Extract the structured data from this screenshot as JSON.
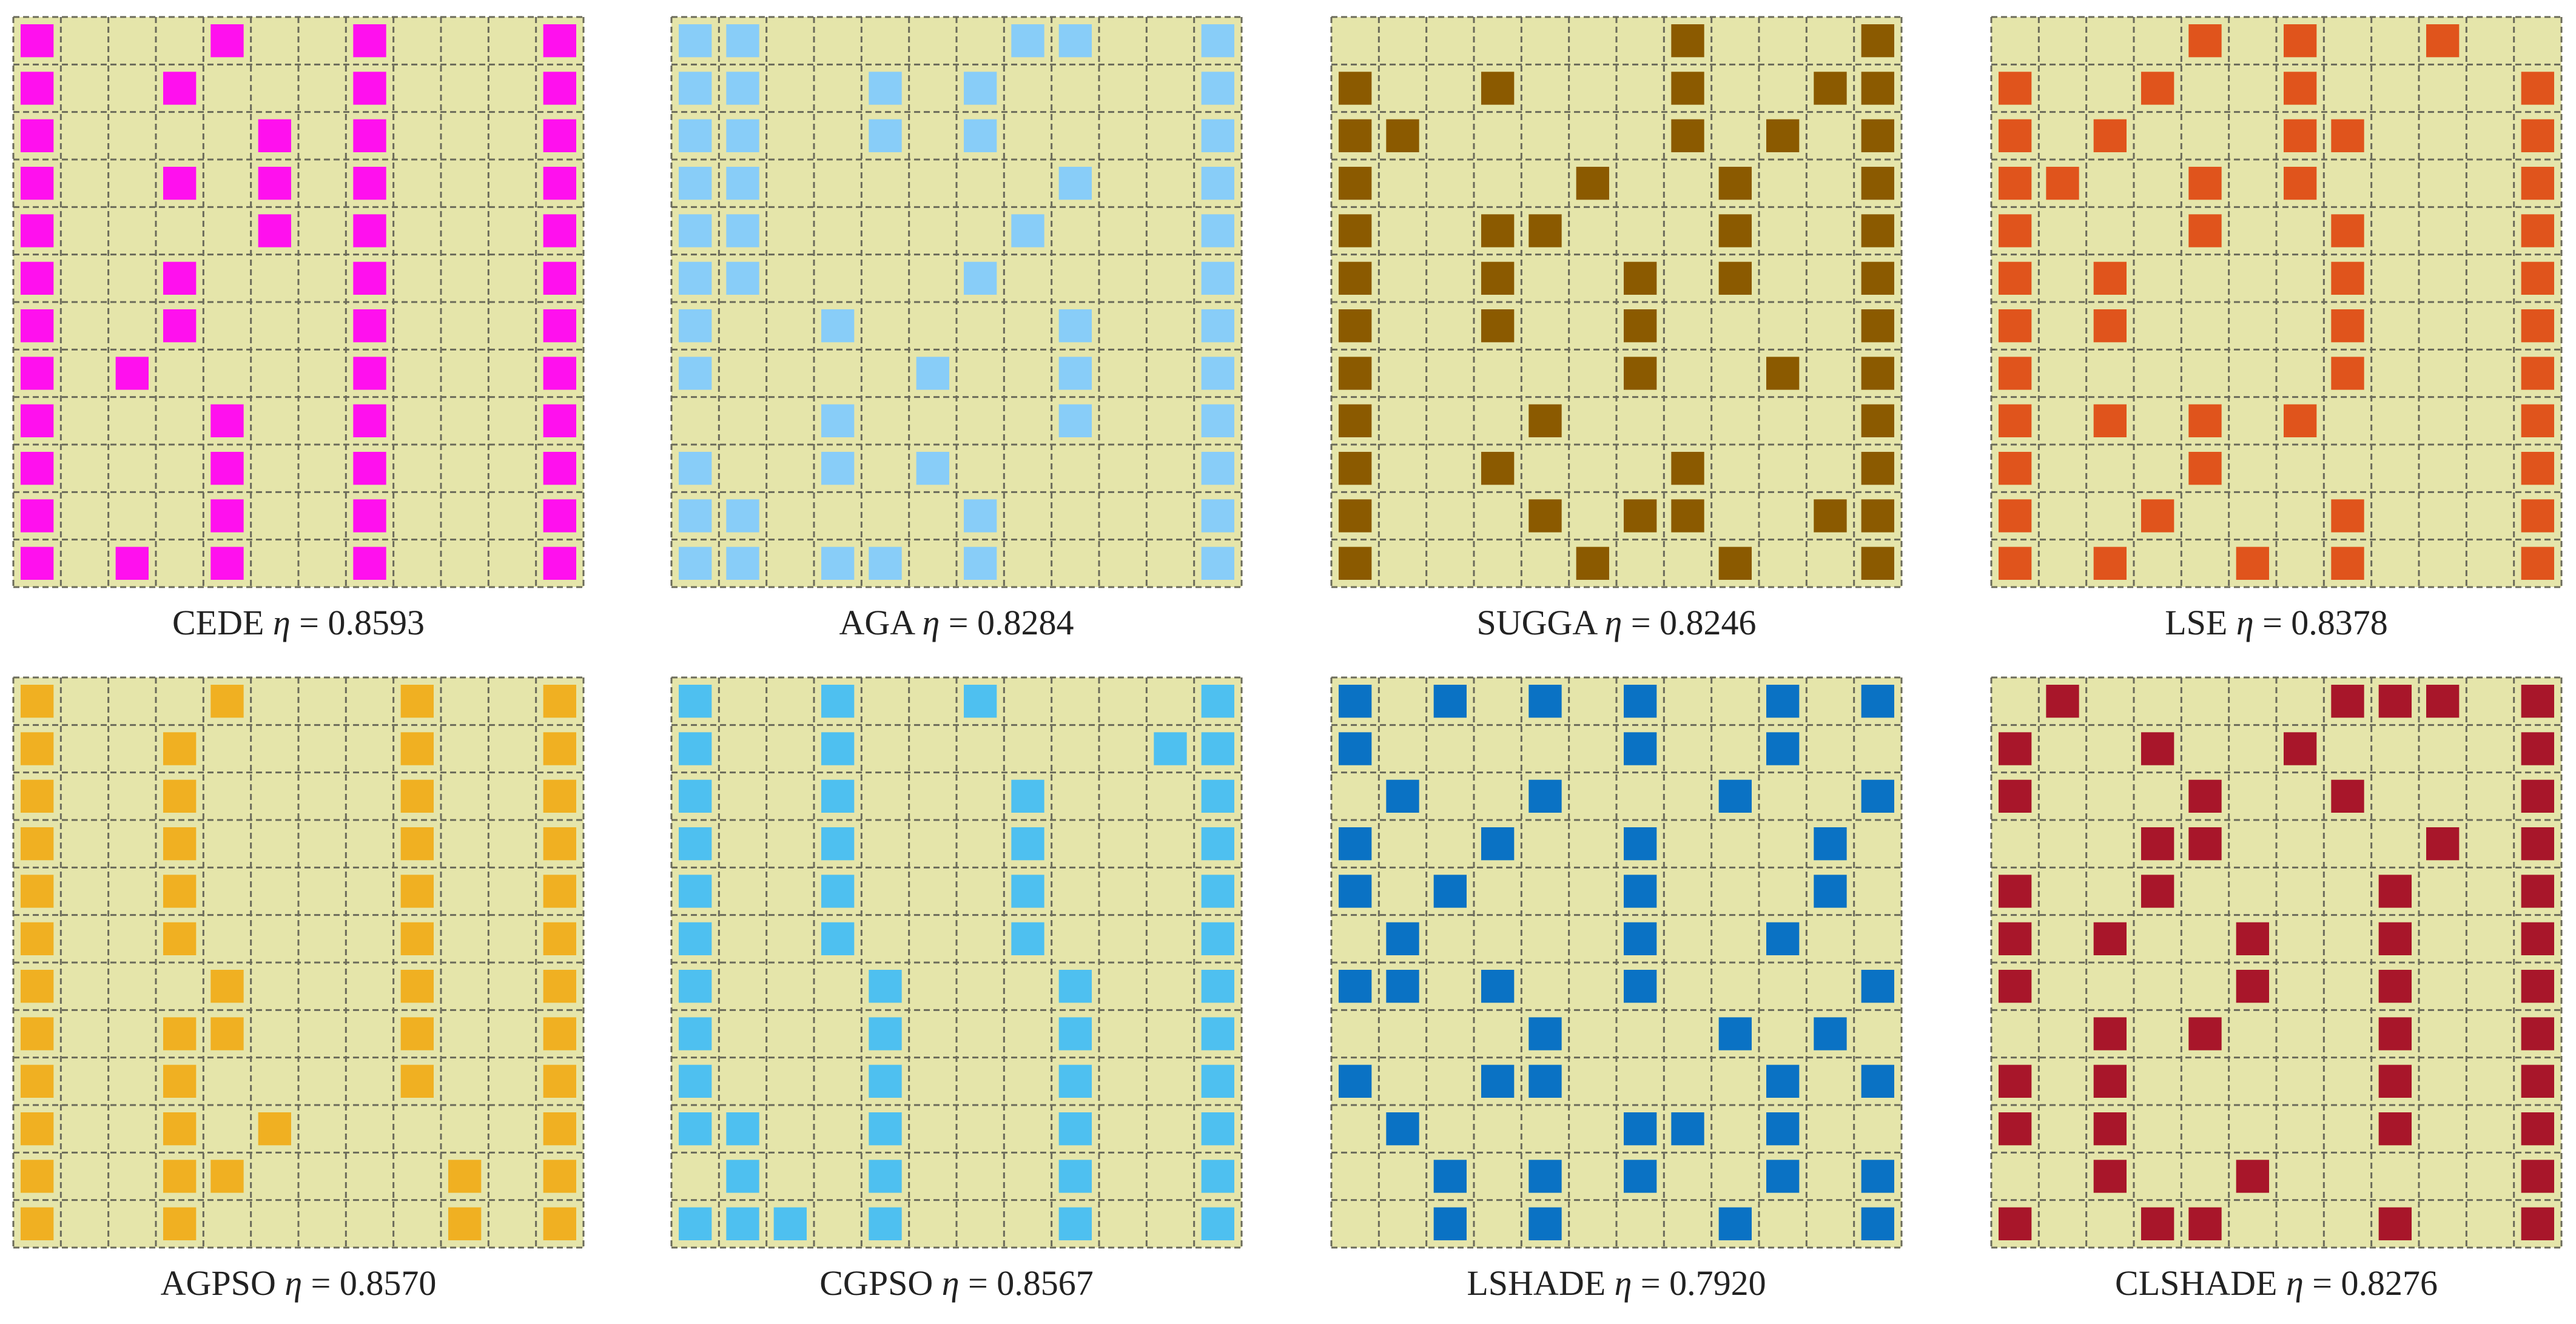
{
  "figure": {
    "background_color": "#e5e5aa",
    "grid_line_color": "#6b6b5a",
    "panels": [
      {
        "name": "CEDE",
        "eta_symbol": "η",
        "eta_value": "0.8593",
        "color": "#ff10ee",
        "cells": [
          "100010010001",
          "100100010001",
          "100001010001",
          "100101010001",
          "100001010001",
          "100100010001",
          "100100010001",
          "101000010001",
          "100010010001",
          "100010010001",
          "100010010001",
          "101010010001"
        ]
      },
      {
        "name": "AGA",
        "eta_symbol": "η",
        "eta_value": "0.8284",
        "color": "#88cdf8",
        "cells": [
          "110000000001",
          "110000000001",
          "110000000001",
          "110000000001",
          "110000000001",
          "110000000001",
          "100000000001",
          "100000000001",
          "000000000001",
          "100000000001",
          "110000000001",
          "110000000001"
        ],
        "extra": [
          [
            0,
            7
          ],
          [
            0,
            8
          ],
          [
            1,
            4
          ],
          [
            1,
            6
          ],
          [
            2,
            4
          ],
          [
            2,
            6
          ],
          [
            3,
            8
          ],
          [
            4,
            7
          ],
          [
            5,
            6
          ],
          [
            6,
            3
          ],
          [
            6,
            8
          ],
          [
            7,
            5
          ],
          [
            7,
            8
          ],
          [
            8,
            3
          ],
          [
            8,
            8
          ],
          [
            9,
            3
          ],
          [
            9,
            5
          ],
          [
            10,
            6
          ],
          [
            11,
            3
          ],
          [
            11,
            4
          ],
          [
            11,
            6
          ]
        ]
      },
      {
        "name": "SUGGA",
        "eta_symbol": "η",
        "eta_value": "0.8246",
        "color": "#8b5a00",
        "cells": [
          "000000010001",
          "100100010011",
          "110000010101",
          "100001001001",
          "100110001001",
          "100100101001",
          "100100100001",
          "100000100101",
          "100010000001",
          "100100010001",
          "100010110011",
          "100001001001"
        ]
      },
      {
        "name": "LSE",
        "eta_symbol": "η",
        "eta_value": "0.8378",
        "color": "#e0541c",
        "cells": [
          "000010100100",
          "100100100001",
          "101000110001",
          "110010100001",
          "100010010001",
          "101000010001",
          "101000010001",
          "100000010001",
          "101010100001",
          "100010000001",
          "100100010001",
          "101001010001"
        ]
      },
      {
        "name": "AGPSO",
        "eta_symbol": "η",
        "eta_value": "0.8570",
        "color": "#f0b022",
        "cells": [
          "100010001001",
          "100100001001",
          "100100001001",
          "100100001001",
          "100100001001",
          "100100001001",
          "100010001001",
          "100110001001",
          "100100001001",
          "100101000001",
          "100110000101",
          "100100000101"
        ]
      },
      {
        "name": "CGPSO",
        "eta_symbol": "η",
        "eta_value": "0.8567",
        "color": "#4ec0f0",
        "cells": [
          "100100100001",
          "100100000011",
          "100100010001",
          "100100010001",
          "100100010001",
          "100100010001",
          "100010001001",
          "100010001001",
          "100010001001",
          "110010001001",
          "010010001001",
          "111010001001"
        ],
        "fix": [
          [
            6,
            8
          ],
          [
            7,
            8
          ],
          [
            8,
            8
          ],
          [
            9,
            8
          ],
          [
            10,
            8
          ],
          [
            11,
            8
          ]
        ]
      },
      {
        "name": "LSHADE",
        "eta_symbol": "η",
        "eta_value": "0.7920",
        "color": "#0a72c4",
        "cells": [
          "101010100101",
          "100000100100",
          "010010001001",
          "100100100010",
          "101000100010",
          "010000100100",
          "110100100001",
          "000010001010",
          "100110000101",
          "010000110100",
          "001010100101",
          "001010001001"
        ]
      },
      {
        "name": "CLSHADE",
        "eta_symbol": "η",
        "eta_value": "0.8276",
        "color": "#a8162a",
        "cells": [
          "010000011101",
          "100100100001",
          "100010010001",
          "000110000101",
          "100100001001",
          "101001001001",
          "100001001001",
          "001010001001",
          "101000001001",
          "101000001001",
          "001001000001",
          "100110001001"
        ]
      }
    ]
  }
}
